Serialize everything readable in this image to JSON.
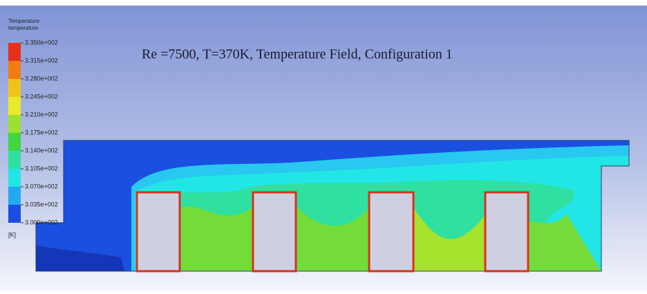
{
  "legend": {
    "title": "Temperature",
    "subtitle": "temperature",
    "ticks": [
      "3.350e+002",
      "3.315e+002",
      "3.280e+002",
      "3.245e+002",
      "3.210e+002",
      "3.175e+002",
      "3.140e+002",
      "3.105e+002",
      "3.070e+002",
      "3.035e+002",
      "3.000e+002"
    ],
    "unit": "[K]"
  },
  "title": "Re =7500, T=370K, Temperature Field, Configuration 1"
}
